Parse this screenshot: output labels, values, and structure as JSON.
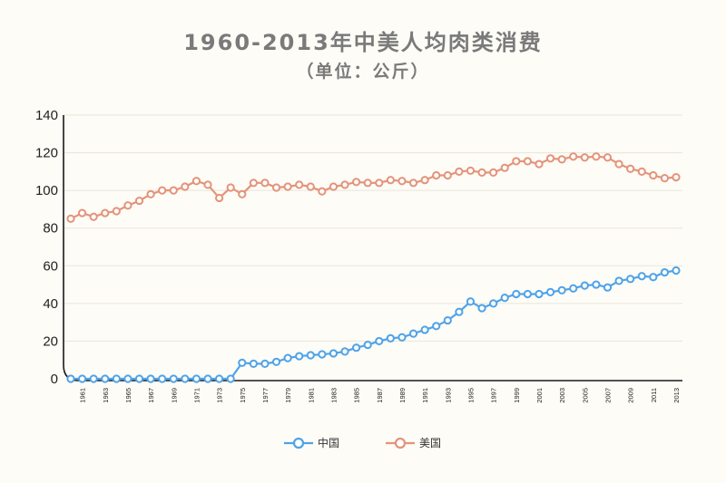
{
  "chart_data": {
    "type": "line",
    "title": "1960-2013年中美人均肉类消费",
    "subtitle": "（单位：公斤）",
    "xlabel": "",
    "ylabel": "",
    "ylim": [
      0,
      140
    ],
    "yticks": [
      "0",
      "20",
      "40",
      "60",
      "80",
      "100",
      "120",
      "140"
    ],
    "grid": true,
    "legend_position": "bottom-center",
    "x": [
      1960,
      1961,
      1962,
      1963,
      1964,
      1965,
      1966,
      1967,
      1968,
      1969,
      1970,
      1971,
      1972,
      1973,
      1974,
      1975,
      1976,
      1977,
      1978,
      1979,
      1980,
      1981,
      1982,
      1983,
      1984,
      1985,
      1986,
      1987,
      1988,
      1989,
      1990,
      1991,
      1992,
      1993,
      1994,
      1995,
      1996,
      1997,
      1998,
      1999,
      2000,
      2001,
      2002,
      2003,
      2004,
      2005,
      2006,
      2007,
      2008,
      2009,
      2010,
      2011,
      2012,
      2013
    ],
    "xtick_labels": [
      "1961",
      "1963",
      "1965",
      "1967",
      "1969",
      "1971",
      "1973",
      "1975",
      "1977",
      "1979",
      "1981",
      "1983",
      "1985",
      "1987",
      "1989",
      "1991",
      "1993",
      "1995",
      "1997",
      "1999",
      "2001",
      "2003",
      "2005",
      "2007",
      "2009",
      "2011",
      "2013"
    ],
    "series": [
      {
        "name": "中国",
        "color": "#4fa3e8",
        "values": [
          0,
          0,
          0,
          0,
          0,
          0,
          0,
          0,
          0,
          0,
          0,
          0,
          0,
          0,
          0,
          8.5,
          8,
          8,
          9,
          11,
          12,
          12.5,
          13,
          13.5,
          14.5,
          16.5,
          18,
          20,
          21.5,
          22,
          24,
          26,
          28,
          31,
          35.5,
          41,
          37.5,
          40,
          43,
          45,
          45,
          45,
          46,
          47,
          48,
          49.5,
          50,
          48.5,
          52,
          53,
          54.5,
          54,
          56.5,
          57.5
        ]
      },
      {
        "name": "美国",
        "color": "#e4937a",
        "values": [
          85,
          88,
          86,
          88,
          89,
          92,
          94.5,
          98,
          100,
          100,
          102,
          105,
          103,
          96,
          101.5,
          98,
          104,
          104,
          101.5,
          102,
          103,
          102,
          99.5,
          102,
          103,
          104.5,
          104,
          104,
          105.5,
          105,
          104,
          105.5,
          108,
          108,
          110,
          110.5,
          109.5,
          109.5,
          112,
          115.5,
          115.5,
          114,
          117,
          116.5,
          118,
          117.5,
          118,
          117.5,
          114,
          111.5,
          110,
          108,
          106.5,
          107
        ]
      }
    ]
  }
}
